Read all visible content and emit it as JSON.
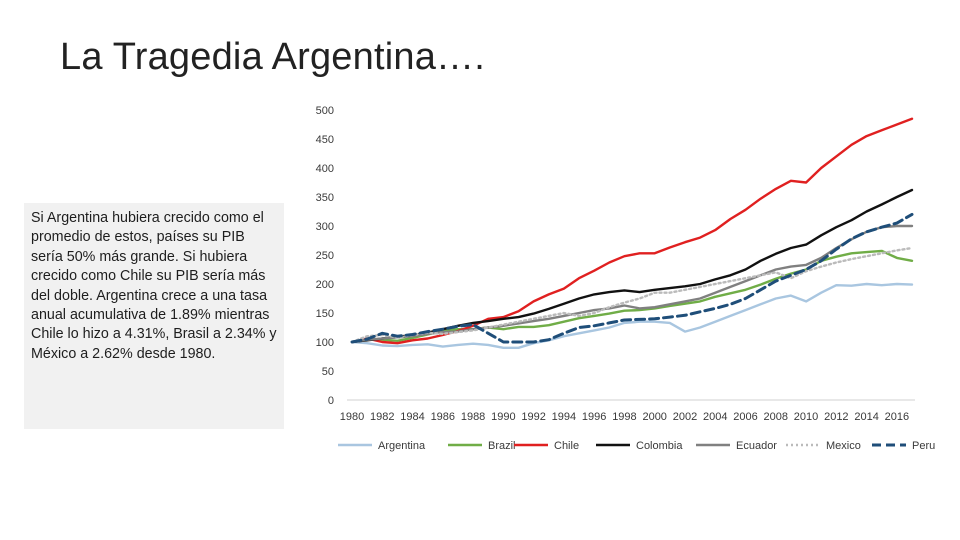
{
  "slide": {
    "title": "La Tragedia Argentina….",
    "note": "Si Argentina hubiera crecido como el promedio de estos, países su PIB sería 50% más grande. Si hubiera crecido como Chile su PIB sería más del doble. Argentina crece a una tasa anual acumulativa de 1.89% mientras Chile lo hizo a 4.31%, Brasil a 2.34% y México a 2.62% desde 1980."
  },
  "chart_data": {
    "type": "line",
    "title": "",
    "xlabel": "",
    "ylabel": "",
    "ylim": [
      0,
      500
    ],
    "yticks": [
      "0",
      "50",
      "100",
      "150",
      "200",
      "250",
      "300",
      "350",
      "400",
      "450",
      "500"
    ],
    "xticks": [
      "1980",
      "1982",
      "1984",
      "1986",
      "1988",
      "1990",
      "1992",
      "1994",
      "1996",
      "1998",
      "2000",
      "2002",
      "2004",
      "2006",
      "2008",
      "2010",
      "2012",
      "2014",
      "2016"
    ],
    "x": [
      1980,
      1981,
      1982,
      1983,
      1984,
      1985,
      1986,
      1987,
      1988,
      1989,
      1990,
      1991,
      1992,
      1993,
      1994,
      1995,
      1996,
      1997,
      1998,
      1999,
      2000,
      2001,
      2002,
      2003,
      2004,
      2005,
      2006,
      2007,
      2008,
      2009,
      2010,
      2011,
      2012,
      2013,
      2014,
      2015,
      2016,
      2017
    ],
    "legend_position": "bottom",
    "series": [
      {
        "name": "Argentina",
        "color": "#a9c6e0",
        "dash": "solid",
        "values": [
          100,
          98,
          94,
          93,
          95,
          96,
          92,
          95,
          97,
          95,
          90,
          90,
          98,
          103,
          110,
          115,
          120,
          125,
          133,
          135,
          135,
          133,
          118,
          125,
          135,
          145,
          155,
          165,
          175,
          180,
          170,
          185,
          198,
          197,
          200,
          198,
          200,
          199
        ]
      },
      {
        "name": "Brazil",
        "color": "#70ad47",
        "dash": "solid",
        "values": [
          100,
          104,
          104,
          102,
          107,
          113,
          119,
          122,
          122,
          125,
          122,
          126,
          126,
          129,
          135,
          141,
          145,
          149,
          154,
          155,
          158,
          162,
          166,
          170,
          178,
          184,
          190,
          199,
          209,
          218,
          225,
          240,
          247,
          253,
          255,
          257,
          245,
          240
        ]
      },
      {
        "name": "Chile",
        "color": "#e02020",
        "dash": "solid",
        "values": [
          100,
          106,
          100,
          98,
          103,
          106,
          112,
          119,
          128,
          140,
          143,
          153,
          170,
          182,
          192,
          210,
          223,
          237,
          248,
          253,
          253,
          263,
          272,
          280,
          293,
          312,
          328,
          347,
          364,
          378,
          375,
          400,
          420,
          440,
          455,
          465,
          475,
          485
        ]
      },
      {
        "name": "Colombia",
        "color": "#111111",
        "dash": "solid",
        "values": [
          100,
          103,
          106,
          109,
          112,
          116,
          122,
          128,
          133,
          136,
          140,
          143,
          149,
          157,
          166,
          175,
          182,
          186,
          189,
          186,
          190,
          193,
          196,
          200,
          208,
          215,
          225,
          240,
          252,
          262,
          268,
          284,
          298,
          310,
          325,
          337,
          350,
          362
        ]
      },
      {
        "name": "Ecuador",
        "color": "#808080",
        "dash": "solid",
        "values": [
          100,
          104,
          106,
          108,
          110,
          114,
          117,
          118,
          122,
          125,
          128,
          132,
          136,
          140,
          145,
          150,
          155,
          158,
          163,
          158,
          160,
          165,
          170,
          175,
          185,
          195,
          205,
          215,
          225,
          230,
          233,
          245,
          262,
          277,
          290,
          298,
          300,
          300
        ]
      },
      {
        "name": "Mexico",
        "color": "#bbbbbb",
        "dash": "dotted",
        "values": [
          100,
          110,
          112,
          108,
          112,
          116,
          114,
          117,
          120,
          125,
          130,
          135,
          140,
          145,
          150,
          145,
          150,
          160,
          168,
          175,
          185,
          185,
          190,
          195,
          200,
          205,
          210,
          215,
          220,
          210,
          222,
          230,
          237,
          243,
          248,
          253,
          258,
          262
        ]
      },
      {
        "name": "Peru",
        "color": "#1f4e79",
        "dash": "dashed",
        "values": [
          100,
          105,
          115,
          110,
          113,
          118,
          122,
          127,
          130,
          115,
          100,
          100,
          100,
          104,
          115,
          125,
          128,
          133,
          138,
          139,
          140,
          143,
          146,
          152,
          158,
          165,
          175,
          190,
          205,
          215,
          225,
          240,
          260,
          278,
          290,
          298,
          305,
          320
        ]
      }
    ]
  }
}
